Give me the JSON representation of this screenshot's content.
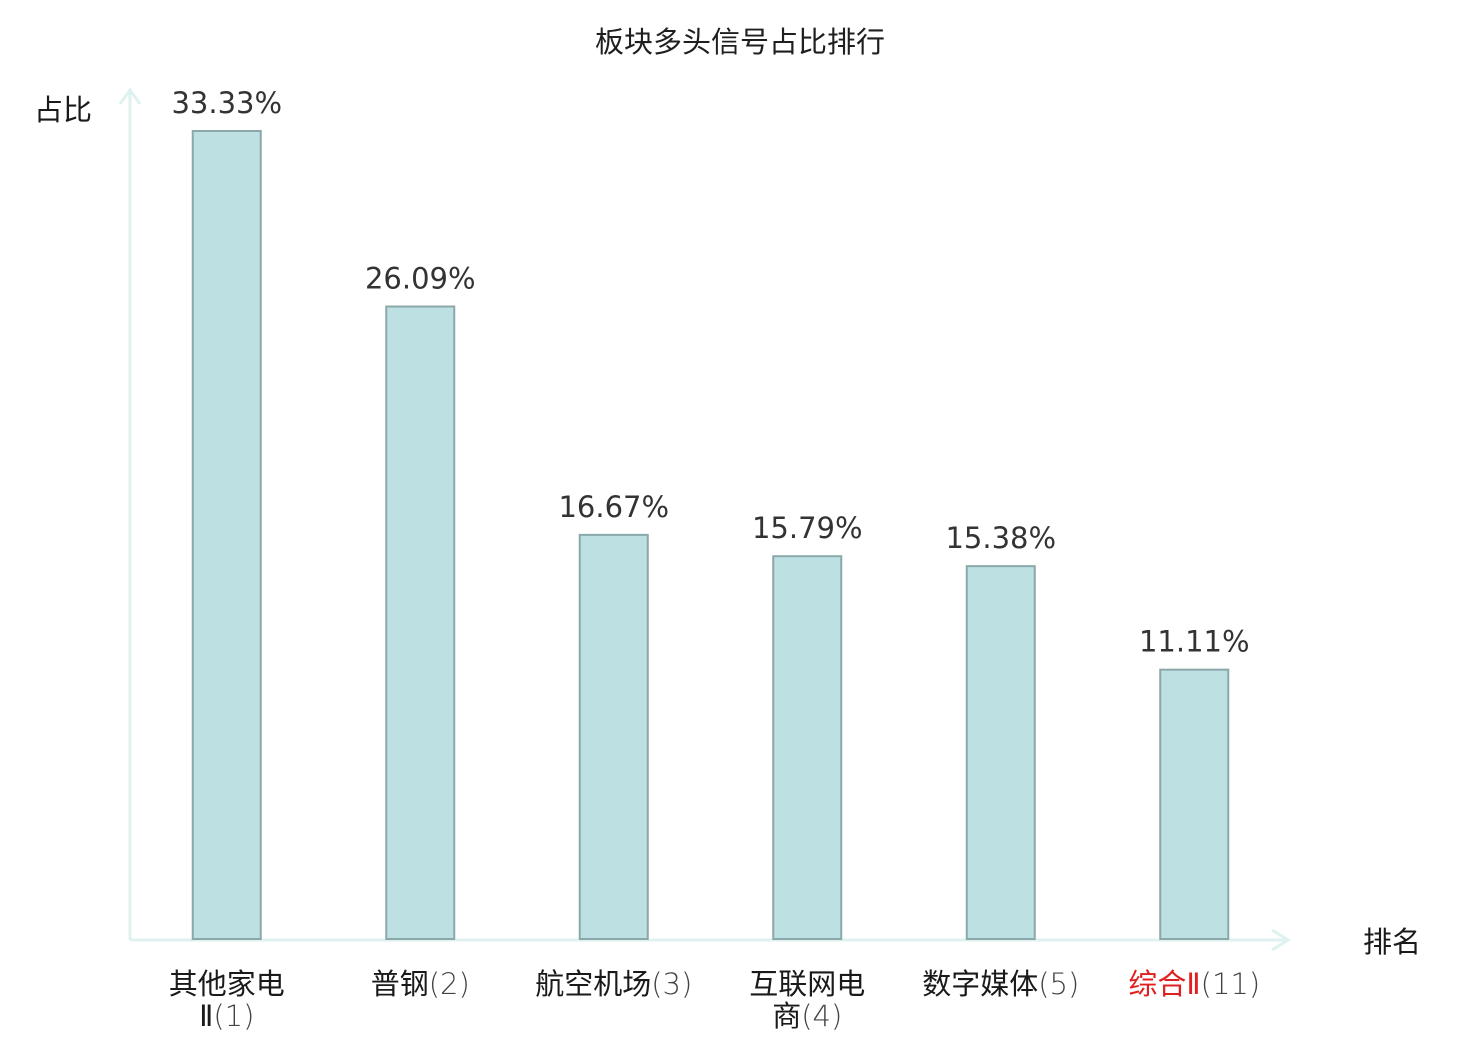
{
  "chart_data": {
    "type": "bar",
    "title": "板块多头信号占比排行",
    "xlabel": "排名",
    "ylabel": "占比",
    "ylim": [
      0,
      35
    ],
    "grid": false,
    "categories": [
      {
        "name_lines": [
          "其他家电"
        ],
        "rank_line_prefix": "Ⅱ",
        "rank": "(1)",
        "highlight": false
      },
      {
        "name_lines": [
          "普钢"
        ],
        "rank_line_prefix": "",
        "rank": "(2)",
        "highlight": false
      },
      {
        "name_lines": [
          "航空机场"
        ],
        "rank_line_prefix": "",
        "rank": "(3)",
        "highlight": false
      },
      {
        "name_lines": [
          "互联网电"
        ],
        "rank_line_prefix": "商",
        "rank": "(4)",
        "highlight": false
      },
      {
        "name_lines": [
          "数字媒体"
        ],
        "rank_line_prefix": "",
        "rank": "(5)",
        "highlight": false
      },
      {
        "name_lines": [
          "综合Ⅱ"
        ],
        "rank_line_prefix": "",
        "rank": "(11)",
        "highlight": true
      }
    ],
    "values": [
      33.33,
      26.09,
      16.67,
      15.79,
      15.38,
      11.11
    ],
    "value_labels": [
      "33.33%",
      "26.09%",
      "16.67%",
      "15.79%",
      "15.38%",
      "11.11%"
    ],
    "colors": {
      "bar_fill": "#bde0e3",
      "bar_stroke": "#8aa8aa",
      "axis": "#dff2ef",
      "highlight_text": "#e02020",
      "normal_text": "#1a1a1a"
    }
  }
}
